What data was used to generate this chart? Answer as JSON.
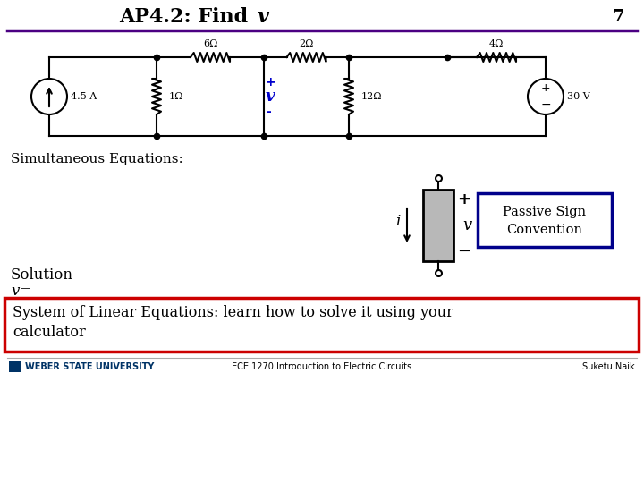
{
  "title_normal": "AP4.2: Find ",
  "title_italic": "v",
  "page_number": "7",
  "bg_color": "#ffffff",
  "title_color": "#000000",
  "purple_line_color": "#4b0082",
  "circuit": {
    "current_source_value": "4.5 A",
    "r1_label": "6Ω",
    "r2_label": "1Ω",
    "r3_label": "2Ω",
    "r4_label": "12Ω",
    "r5_label": "4Ω",
    "voltage_source_value": "30 V"
  },
  "simultaneous_text": "Simultaneous Equations:",
  "solution_text": "Solution",
  "v_eq_text": "v=",
  "passive_sign_text1": "Passive Sign",
  "passive_sign_text2": "Convention",
  "passive_box_color": "#00008b",
  "bottom_box_text1": "System of Linear Equations: learn how to solve it using your",
  "bottom_box_text2": "calculator",
  "bottom_box_border": "#cc0000",
  "footer_left": "WEBER STATE UNIVERSITY",
  "footer_center": "ECE 1270 Introduction to Electric Circuits",
  "footer_right": "Suketu Naik",
  "blue_color": "#0000cd",
  "black": "#000000"
}
